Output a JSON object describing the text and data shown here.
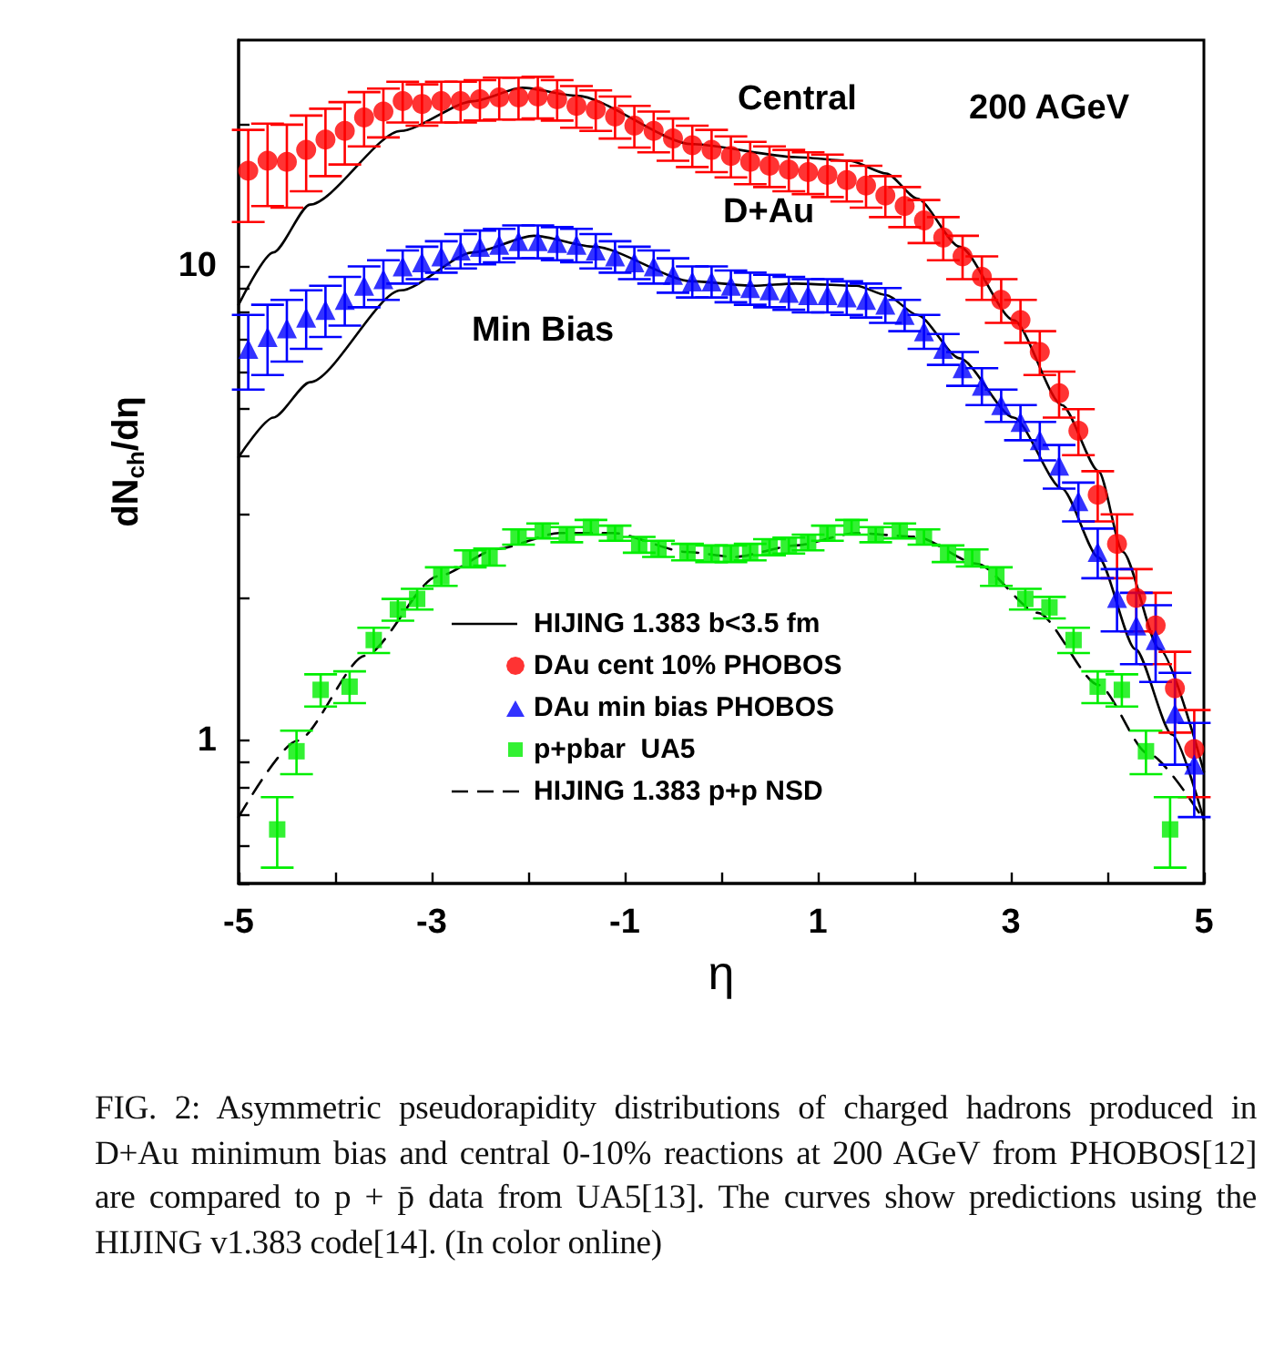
{
  "chart_data": {
    "type": "scatter",
    "xlabel": "η",
    "ylabel": "dN$_{ch}$/dη",
    "xlim": [
      -5,
      5
    ],
    "xticks": [
      -5,
      {
        "value": -4,
        "label": null
      },
      -3,
      {
        "value": -2,
        "label": null
      },
      -1,
      {
        "value": 0,
        "label": null
      },
      1,
      {
        "value": 2,
        "label": null
      },
      3,
      {
        "value": 4,
        "label": null
      },
      5
    ],
    "ylim": [
      0.5,
      30
    ],
    "log": "y",
    "yticks": [
      {
        "value": 0.5,
        "label": null
      },
      {
        "value": 0.6,
        "label": null
      },
      {
        "value": 0.7,
        "label": null
      },
      {
        "value": 0.8,
        "label": null
      },
      {
        "value": 0.9,
        "label": null
      },
      1,
      {
        "value": 2,
        "label": null
      },
      {
        "value": 3,
        "label": null
      },
      {
        "value": 4,
        "label": null
      },
      {
        "value": 5,
        "label": null
      },
      {
        "value": 6,
        "label": null
      },
      {
        "value": 7,
        "label": null
      },
      {
        "value": 8,
        "label": null
      },
      {
        "value": 9,
        "label": null
      },
      10,
      {
        "value": 20,
        "label": null
      }
    ],
    "legend": "bottom",
    "annotations": [
      "Central",
      "D+Au",
      "Min Bias",
      "200 AGeV",
      "FIG. 2: Asymmetric pseudorapidity distributions of charged hadrons produced in D+Au minimum bias and central 0-10% reactions at 200 AGeV from PHOBOS[12] are compared to p + p̄ data from UA5[13]. The curves show predictions using the HIJING v1.383 code[14]. (In color online)"
    ],
    "series": [
      {
        "name": "HIJING 1.383 b<3.5 fm",
        "type": "line",
        "color": "#000000",
        "marker": "none",
        "line_style": "solid",
        "x": [
          -5,
          -4.64,
          -4.26,
          -3.32,
          -2.57,
          -2.06,
          -1.5,
          -0.3,
          0.77,
          1.33,
          1.71,
          2.03,
          2.47,
          3.03,
          3.53,
          3.91,
          4.16,
          4.54,
          5
        ],
        "values": [
          8.3,
          10.7,
          13.5,
          19.3,
          22.3,
          23.8,
          22.9,
          18.1,
          17.0,
          16.7,
          15.7,
          13.9,
          11.0,
          7.7,
          5.1,
          3.7,
          2.5,
          1.56,
          0.86
        ]
      },
      {
        "name": "DAu cent 10% PHOBOS",
        "color": "#ff0000",
        "marker": "circle",
        "x": [
          -4.9,
          -4.7,
          -4.5,
          -4.3,
          -4.1,
          -3.9,
          -3.7,
          -3.5,
          -3.3,
          -3.1,
          -2.9,
          -2.7,
          -2.5,
          -2.3,
          -2.1,
          -1.9,
          -1.7,
          -1.5,
          -1.3,
          -1.1,
          -0.9,
          -0.7,
          -0.5,
          -0.3,
          -0.1,
          0.1,
          0.3,
          0.5,
          0.7,
          0.9,
          1.1,
          1.3,
          1.5,
          1.7,
          1.9,
          2.1,
          2.3,
          2.5,
          2.7,
          2.9,
          3.1,
          3.3,
          3.5,
          3.7,
          3.9,
          4.1,
          4.3,
          4.5,
          4.7,
          4.9
        ],
        "values": [
          15.9,
          16.7,
          16.6,
          17.6,
          18.5,
          19.3,
          20.6,
          21.2,
          22.3,
          22.0,
          22.3,
          22.3,
          22.5,
          22.7,
          22.7,
          22.8,
          22.5,
          21.8,
          21.4,
          20.7,
          19.8,
          19.3,
          18.6,
          18.0,
          17.6,
          17.1,
          16.6,
          16.3,
          16.0,
          15.8,
          15.6,
          15.2,
          14.8,
          14.1,
          13.4,
          12.5,
          11.5,
          10.5,
          9.5,
          8.5,
          7.7,
          6.6,
          5.4,
          4.5,
          3.3,
          2.6,
          2.0,
          1.75,
          1.29,
          0.96
        ],
        "errors": [
          3.5,
          3.3,
          3.3,
          3.2,
          3.0,
          2.9,
          2.7,
          2.5,
          2.2,
          2.2,
          2.2,
          2.2,
          2.2,
          2.3,
          2.3,
          2.3,
          2.2,
          2.2,
          2.1,
          2.1,
          2.0,
          1.9,
          1.9,
          1.8,
          1.8,
          1.7,
          1.7,
          1.6,
          1.6,
          1.6,
          1.6,
          1.5,
          1.5,
          1.4,
          1.3,
          1.3,
          1.2,
          1.1,
          1.0,
          0.9,
          0.8,
          0.7,
          0.6,
          0.5,
          0.4,
          0.4,
          0.3,
          0.3,
          0.25,
          0.2
        ]
      },
      {
        "name": "DAu min bias PHOBOS",
        "color": "#0000ff",
        "marker": "triangle",
        "x": [
          -4.9,
          -4.7,
          -4.5,
          -4.3,
          -4.1,
          -3.9,
          -3.7,
          -3.5,
          -3.3,
          -3.1,
          -2.9,
          -2.7,
          -2.5,
          -2.3,
          -2.1,
          -1.9,
          -1.7,
          -1.5,
          -1.3,
          -1.1,
          -0.9,
          -0.7,
          -0.5,
          -0.3,
          -0.1,
          0.1,
          0.3,
          0.5,
          0.7,
          0.9,
          1.1,
          1.3,
          1.5,
          1.7,
          1.9,
          2.1,
          2.3,
          2.5,
          2.7,
          2.9,
          3.1,
          3.3,
          3.5,
          3.7,
          3.9,
          4.1,
          4.3,
          4.5,
          4.7,
          4.9
        ],
        "values": [
          6.7,
          7.1,
          7.4,
          7.8,
          8.1,
          8.5,
          9.1,
          9.4,
          10.0,
          10.2,
          10.5,
          10.8,
          11.0,
          11.1,
          11.3,
          11.3,
          11.2,
          11.1,
          10.8,
          10.5,
          10.2,
          10.0,
          9.6,
          9.3,
          9.3,
          9.1,
          9.0,
          8.9,
          8.8,
          8.7,
          8.7,
          8.6,
          8.5,
          8.3,
          7.9,
          7.3,
          6.7,
          6.1,
          5.6,
          5.1,
          4.7,
          4.3,
          3.8,
          3.2,
          2.5,
          2.0,
          1.75,
          1.63,
          1.14,
          0.89
        ],
        "errors": [
          1.2,
          1.2,
          1.1,
          1.1,
          1.0,
          1.0,
          0.9,
          0.9,
          0.8,
          0.8,
          0.8,
          0.9,
          0.9,
          0.9,
          0.9,
          0.9,
          0.9,
          0.9,
          0.9,
          0.8,
          0.8,
          0.8,
          0.8,
          0.7,
          0.7,
          0.7,
          0.7,
          0.7,
          0.7,
          0.7,
          0.7,
          0.7,
          0.7,
          0.7,
          0.6,
          0.6,
          0.5,
          0.5,
          0.5,
          0.4,
          0.4,
          0.4,
          0.4,
          0.3,
          0.3,
          0.3,
          0.3,
          0.3,
          0.25,
          0.2
        ]
      },
      {
        "name": "p+pbar  UA5",
        "color": "#00ee00",
        "marker": "square",
        "x": [
          -4.6,
          -4.4,
          -4.15,
          -3.85,
          -3.6,
          -3.35,
          -3.15,
          -2.9,
          -2.6,
          -2.4,
          -2.1,
          -1.85,
          -1.6,
          -1.35,
          -1.1,
          -0.85,
          -0.65,
          -0.35,
          -0.1,
          0.1,
          0.3,
          0.5,
          0.7,
          0.9,
          1.1,
          1.35,
          1.6,
          1.85,
          2.1,
          2.35,
          2.6,
          2.85,
          3.15,
          3.4,
          3.65,
          3.9,
          4.15,
          4.4,
          4.65
        ],
        "values": [
          0.65,
          0.95,
          1.28,
          1.3,
          1.63,
          1.89,
          1.99,
          2.22,
          2.42,
          2.44,
          2.69,
          2.77,
          2.72,
          2.82,
          2.74,
          2.59,
          2.54,
          2.5,
          2.48,
          2.48,
          2.5,
          2.56,
          2.58,
          2.62,
          2.74,
          2.82,
          2.72,
          2.77,
          2.69,
          2.48,
          2.43,
          2.22,
          1.99,
          1.91,
          1.63,
          1.3,
          1.28,
          0.95,
          0.65
        ],
        "errors": [
          0.11,
          0.1,
          0.1,
          0.1,
          0.1,
          0.1,
          0.1,
          0.1,
          0.1,
          0.1,
          0.1,
          0.1,
          0.1,
          0.1,
          0.1,
          0.1,
          0.1,
          0.1,
          0.1,
          0.1,
          0.1,
          0.1,
          0.1,
          0.1,
          0.1,
          0.1,
          0.1,
          0.1,
          0.1,
          0.1,
          0.1,
          0.1,
          0.1,
          0.1,
          0.1,
          0.1,
          0.1,
          0.1,
          0.11
        ]
      },
      {
        "name": "HIJING 1.383 p+p NSD",
        "type": "line",
        "color": "#000000",
        "marker": "none",
        "line_style": "dashed",
        "x": [
          -5,
          -4.39,
          -3.69,
          -2.94,
          -2.31,
          -1.68,
          -1.12,
          -0.36,
          0.14,
          0.77,
          1.4,
          2.02,
          2.65,
          3.28,
          3.91,
          4.42,
          5
        ],
        "values": [
          0.69,
          1.0,
          1.51,
          2.22,
          2.54,
          2.74,
          2.74,
          2.5,
          2.44,
          2.58,
          2.74,
          2.69,
          2.36,
          1.86,
          1.31,
          0.94,
          0.68
        ]
      },
      {
        "type": "line",
        "color": "#000000",
        "marker": "none",
        "line_style": "solid",
        "x": [
          -5,
          -4.64,
          -4.26,
          -3.32,
          -2.57,
          -1.94,
          -1.31,
          -0.3,
          0.33,
          0.77,
          1.4,
          1.71,
          2.03,
          2.47,
          3.03,
          3.53,
          3.91,
          4.29,
          4.67,
          5
        ],
        "values": [
          3.96,
          4.8,
          5.7,
          8.9,
          10.7,
          11.6,
          11.0,
          9.3,
          9.1,
          9.2,
          9.1,
          8.7,
          7.9,
          6.4,
          4.8,
          3.4,
          2.43,
          1.56,
          1.03,
          0.68
        ]
      }
    ]
  }
}
